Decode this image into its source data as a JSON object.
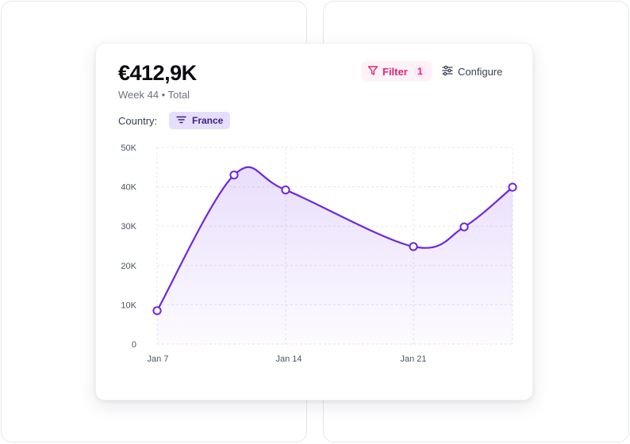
{
  "summary": {
    "amount": "€412,9K",
    "subtitle": "Week 44 • Total"
  },
  "toolbar": {
    "filter_label": "Filter",
    "filter_count": "1",
    "configure_label": "Configure"
  },
  "country_filter": {
    "label": "Country:",
    "value": "France"
  },
  "colors": {
    "accent": "#6d28d9",
    "filter": "#db2777"
  },
  "chart_data": {
    "type": "area",
    "x": [
      "Jan 7",
      "Jan 11",
      "Jan 14",
      "Jan 21",
      "Jan 24",
      "Jan 28"
    ],
    "x_tick_labels": [
      "Jan 7",
      "Jan 14",
      "Jan 21"
    ],
    "y_tick_labels": [
      "0",
      "10K",
      "20K",
      "30K",
      "40K",
      "50K"
    ],
    "series": [
      {
        "values": [
          8500,
          43000,
          39200,
          24800,
          29800,
          39900
        ]
      }
    ],
    "ylim": [
      0,
      50000
    ],
    "grid": true
  }
}
